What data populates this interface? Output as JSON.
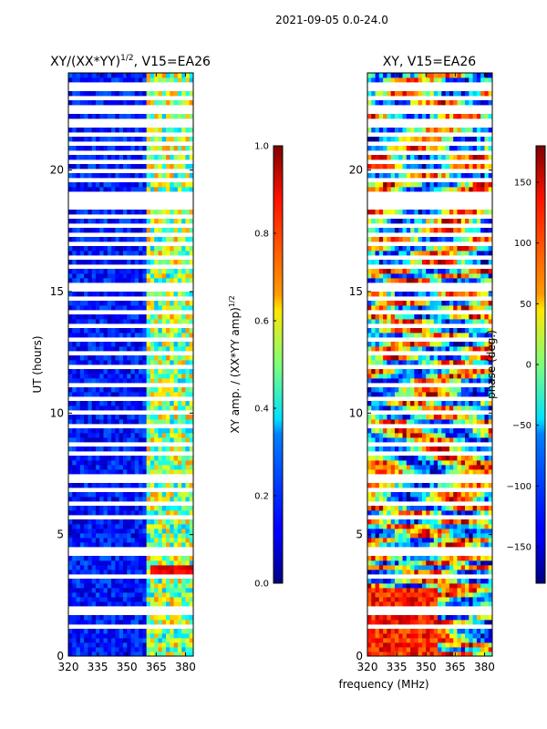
{
  "figure": {
    "suptitle": "2021-09-05 0.0-24.0",
    "xlabel_shared": "frequency (MHz)"
  },
  "chart_data": [
    {
      "type": "heatmap",
      "title_main": "XY/(XX*YY)",
      "title_sup": "1/2",
      "title_tail": ", V15=EA26",
      "ylabel": "UT (hours)",
      "x_ticks": [
        320,
        335,
        350,
        365,
        380
      ],
      "y_ticks": [
        0,
        5,
        10,
        15,
        20
      ],
      "xlim": [
        320,
        384
      ],
      "ylim": [
        0,
        24
      ],
      "colorbar": {
        "label_main": "XY amp. / (XX*YY amp)",
        "label_sup": "1/2",
        "ticks": [
          "0.0",
          "0.2",
          "0.4",
          "0.6",
          "0.8",
          "1.0"
        ],
        "range": [
          0,
          1
        ]
      },
      "colormap": "jet"
    },
    {
      "type": "heatmap",
      "title": "XY, V15=EA26",
      "x_ticks": [
        320,
        335,
        350,
        365,
        380
      ],
      "y_ticks": [
        0,
        5,
        10,
        15,
        20
      ],
      "xlim": [
        320,
        384
      ],
      "ylim": [
        0,
        24
      ],
      "colorbar": {
        "label": "phase (deg.)",
        "ticks": [
          "−150",
          "−100",
          "−50",
          "0",
          "50",
          "100",
          "150"
        ],
        "tick_values": [
          -150,
          -100,
          -50,
          0,
          50,
          100,
          150
        ],
        "range": [
          -180,
          180
        ]
      },
      "colormap": "jet"
    }
  ]
}
